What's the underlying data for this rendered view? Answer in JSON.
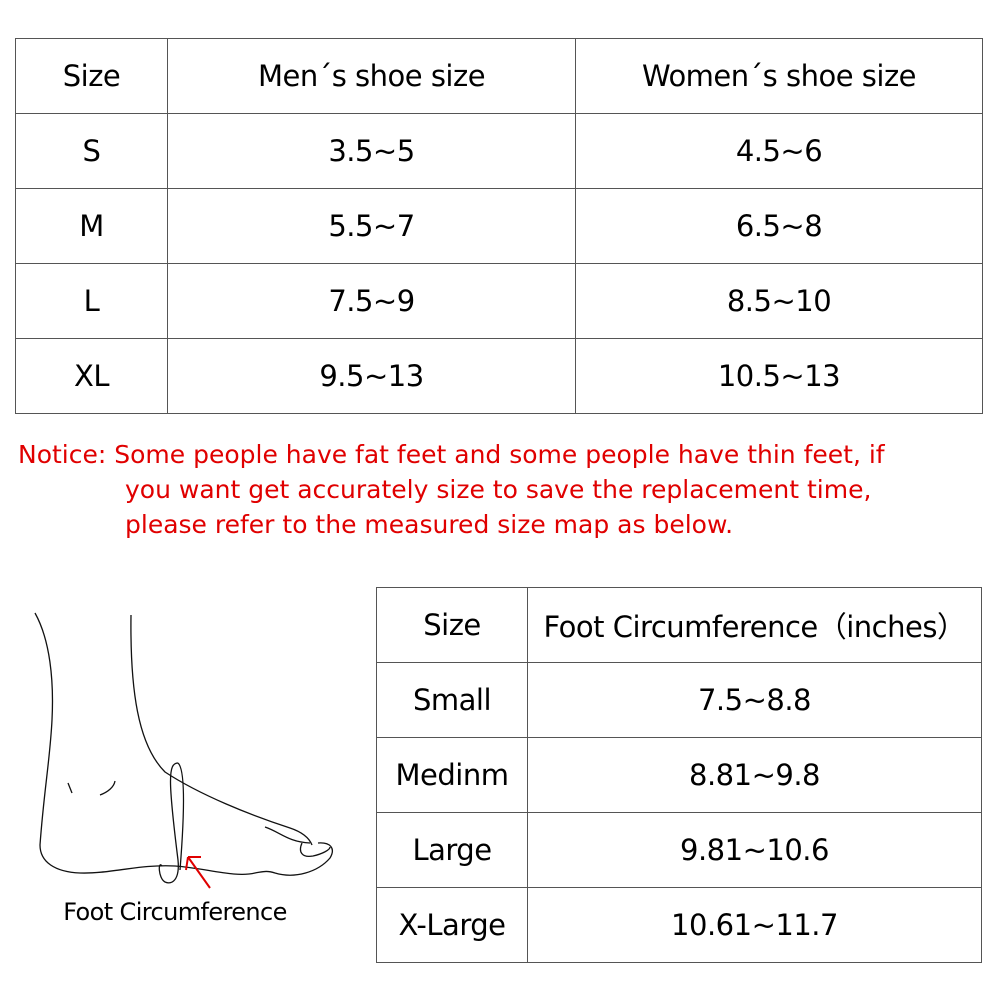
{
  "shoe_table": {
    "headers": [
      "Size",
      "Men´s shoe size",
      "Women´s shoe size"
    ],
    "rows": [
      [
        "S",
        "3.5~5",
        "4.5~6"
      ],
      [
        "M",
        "5.5~7",
        "6.5~8"
      ],
      [
        "L",
        "7.5~9",
        "8.5~10"
      ],
      [
        "XL",
        "9.5~13",
        "10.5~13"
      ]
    ]
  },
  "notice": {
    "line1": "Notice:  Some people have fat feet and some people have thin feet,  if",
    "line2": "you want get accurately size to save the replacement time,",
    "line3": "please refer to the measured size map as below."
  },
  "foot_diagram": {
    "label": "Foot Circumference",
    "arrow_color": "#e00000"
  },
  "circumference_table": {
    "headers": [
      "Size",
      "Foot Circumference（inches）"
    ],
    "rows": [
      [
        "Small",
        "7.5~8.8"
      ],
      [
        "Medinm",
        "8.81~9.8"
      ],
      [
        "Large",
        "9.81~10.6"
      ],
      [
        "X-Large",
        "10.61~11.7"
      ]
    ]
  }
}
